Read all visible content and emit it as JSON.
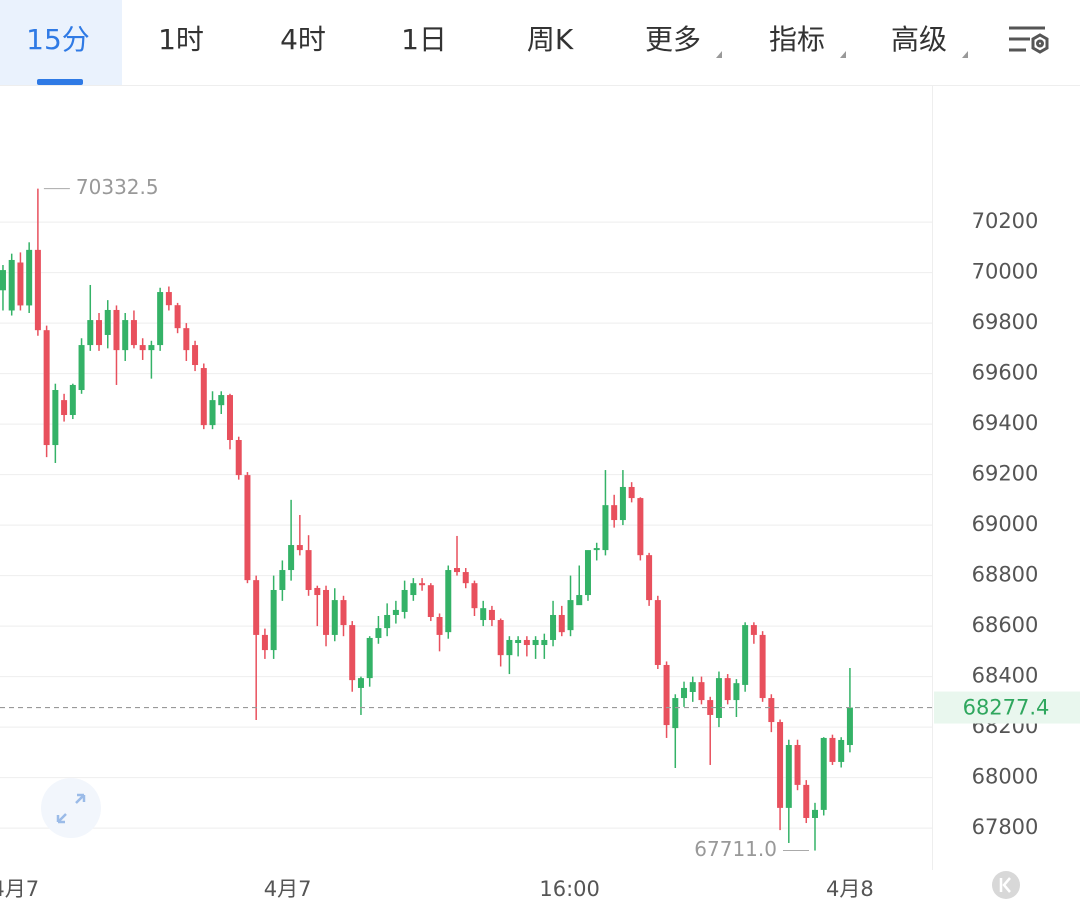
{
  "tabs": {
    "items": [
      "15分",
      "1时",
      "4时",
      "1日",
      "周K",
      "更多",
      "指标",
      "高级"
    ],
    "selected": 0,
    "dropdown": [
      false,
      false,
      false,
      false,
      false,
      true,
      true,
      true
    ]
  },
  "chart_data": {
    "type": "candlestick",
    "open": [
      69930,
      69850,
      70040,
      69870,
      70090,
      69772,
      69317,
      69495,
      69436,
      69535,
      69713,
      69812,
      69753,
      69852,
      69693,
      69812,
      69713,
      69693,
      69713,
      69923,
      69871,
      69780,
      69713,
      69622,
      69396,
      69475,
      69515,
      69337,
      69198,
      68782,
      68565,
      68505,
      68743,
      68822,
      68921,
      68901,
      68751,
      68743,
      68565,
      68703,
      68604,
      68355,
      68394,
      68553,
      68592,
      68644,
      68656,
      68723,
      68770,
      68762,
      68636,
      68576,
      68830,
      68814,
      68770,
      68624,
      68664,
      68624,
      68485,
      68533,
      68545,
      68525,
      68525,
      68545,
      68644,
      68584,
      68683,
      68723,
      68901,
      68901,
      69079,
      69020,
      69151,
      69107,
      68881,
      68703,
      68446,
      68196,
      68315,
      68339,
      68378,
      68307,
      68236,
      68394,
      68307,
      68367,
      68604,
      68565,
      68315,
      68220,
      67880,
      68129,
      67971,
      67840,
      67872,
      68157,
      68062,
      68129
    ],
    "high": [
      70030,
      70075,
      70080,
      70120,
      70332.5,
      69790,
      69560,
      69520,
      69560,
      69740,
      69951,
      69840,
      69891,
      69870,
      69840,
      69850,
      69740,
      69730,
      69940,
      69945,
      69880,
      69800,
      69730,
      69640,
      69530,
      69530,
      69520,
      69350,
      69210,
      68800,
      68590,
      68800,
      68860,
      69100,
      69040,
      68960,
      68760,
      68760,
      68750,
      68720,
      68620,
      68400,
      68560,
      68640,
      68690,
      68700,
      68780,
      68790,
      68790,
      68770,
      68650,
      68840,
      68957,
      68830,
      68780,
      68700,
      68680,
      68630,
      68560,
      68560,
      68560,
      68560,
      68570,
      68700,
      68680,
      68800,
      68840,
      68900,
      68930,
      69218,
      69120,
      69218,
      69170,
      69110,
      68890,
      68720,
      68460,
      68330,
      68380,
      68400,
      68400,
      68320,
      68420,
      68410,
      68390,
      68615,
      68615,
      68580,
      68330,
      68230,
      68150,
      68150,
      67990,
      67900,
      68160,
      68170,
      68160,
      68434
    ],
    "low": [
      69850,
      69830,
      69850,
      69840,
      69750,
      69269,
      69246,
      69410,
      69420,
      69520,
      69690,
      69690,
      69700,
      69555,
      69650,
      69700,
      69654,
      69580,
      69690,
      69850,
      69760,
      69650,
      69610,
      69380,
      69380,
      69440,
      69300,
      69180,
      68770,
      68228,
      68470,
      68470,
      68700,
      68780,
      68880,
      68720,
      68600,
      68520,
      68540,
      68560,
      68340,
      68248,
      68360,
      68530,
      68560,
      68610,
      68630,
      68700,
      68740,
      68620,
      68500,
      68550,
      68800,
      68750,
      68640,
      68600,
      68600,
      68440,
      68410,
      68480,
      68480,
      68470,
      68470,
      68520,
      68560,
      68560,
      68690,
      68700,
      68860,
      68880,
      68990,
      69000,
      69090,
      68860,
      68680,
      68430,
      68157,
      68038,
      68280,
      68300,
      68290,
      68050,
      68200,
      68290,
      68240,
      68340,
      68530,
      68300,
      68180,
      67792,
      67741,
      67950,
      67820,
      67711,
      67850,
      68050,
      68040,
      68100
    ],
    "close": [
      70010,
      70050,
      69870,
      70090,
      69772,
      69317,
      69535,
      69436,
      69555,
      69713,
      69812,
      69713,
      69852,
      69693,
      69812,
      69713,
      69693,
      69713,
      69923,
      69871,
      69780,
      69693,
      69634,
      69396,
      69495,
      69515,
      69337,
      69198,
      68782,
      68565,
      68505,
      68743,
      68822,
      68921,
      68901,
      68743,
      68723,
      68565,
      68703,
      68604,
      68386,
      68394,
      68553,
      68592,
      68644,
      68664,
      68743,
      68770,
      68762,
      68636,
      68565,
      68822,
      68814,
      68770,
      68671,
      68671,
      68624,
      68485,
      68545,
      68545,
      68525,
      68545,
      68545,
      68644,
      68576,
      68703,
      68723,
      68901,
      68909,
      69079,
      69020,
      69151,
      69107,
      68881,
      68703,
      68446,
      68208,
      68315,
      68355,
      68378,
      68307,
      68248,
      68394,
      68307,
      68374,
      68604,
      68565,
      68315,
      68220,
      67880,
      68129,
      67971,
      67840,
      67872,
      68157,
      68062,
      68149,
      68277.4
    ],
    "up_color": "#34b267",
    "down_color": "#e8505d",
    "ylim": [
      67634,
      70743
    ],
    "yticks": [
      67800,
      68000,
      68200,
      68400,
      68600,
      68800,
      69000,
      69200,
      69400,
      69600,
      69800,
      70000,
      70200
    ],
    "xlim": [
      -0.34,
      106.4
    ],
    "xticks": [
      {
        "value": 1.4,
        "label": "4月7"
      },
      {
        "value": 32.6,
        "label": "4月7"
      },
      {
        "value": 64.9,
        "label": "16:00"
      },
      {
        "value": 97,
        "label": "4月8"
      }
    ],
    "grid": true,
    "annotations": [
      {
        "text": "70332.5",
        "value": 70332.5
      },
      {
        "text": "67711.0",
        "value": 67711
      }
    ]
  }
}
